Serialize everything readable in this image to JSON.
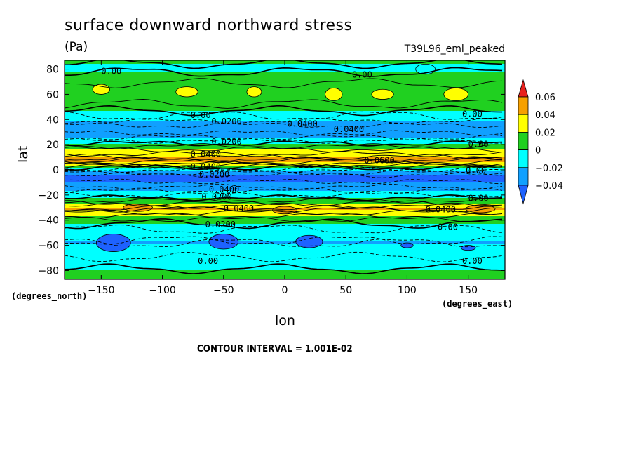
{
  "title": "surface downward northward stress",
  "units": "(Pa)",
  "dataset": "T39L96_eml_peaked",
  "footer": "CONTOUR INTERVAL = 1.001E-02",
  "chart_data": {
    "type": "heatmap",
    "title": "surface downward northward stress",
    "units": "(Pa)",
    "xlabel": "lon",
    "ylabel": "lat",
    "x_unit_label": "(degrees_east)",
    "y_unit_label": "(degrees_north)",
    "xlim": [
      -180,
      180
    ],
    "ylim": [
      -87,
      87
    ],
    "x_ticks": [
      -150,
      -100,
      -50,
      0,
      50,
      100,
      150
    ],
    "y_ticks": [
      -80,
      -60,
      -40,
      -20,
      0,
      20,
      40,
      60,
      80
    ],
    "x_tick_labels": [
      "−150",
      "−100",
      "−50",
      "0",
      "50",
      "100",
      "150"
    ],
    "y_tick_labels": [
      "−80",
      "−60",
      "−40",
      "−20",
      "0",
      "20",
      "40",
      "60",
      "80"
    ],
    "colorbar": {
      "levels": [
        0.06,
        0.04,
        0.02,
        0,
        -0.02,
        -0.04
      ],
      "labels": [
        "0.06",
        "0.04",
        "0.02",
        "0",
        "−0.02",
        "−0.04"
      ],
      "colors": [
        "#e8211c",
        "#f6a000",
        "#ffff00",
        "#20d020",
        "#00ffff",
        "#10a0ff",
        "#1e62ff"
      ]
    },
    "contour_interval": 0.01001,
    "lat_profile": [
      {
        "lat": 87,
        "value": 0.005
      },
      {
        "lat": 82,
        "value": -0.005
      },
      {
        "lat": 75,
        "value": 0.003
      },
      {
        "lat": 62,
        "value": 0.018
      },
      {
        "lat": 50,
        "value": 0.008
      },
      {
        "lat": 44,
        "value": -0.008
      },
      {
        "lat": 38,
        "value": -0.022
      },
      {
        "lat": 33,
        "value": -0.038
      },
      {
        "lat": 27,
        "value": -0.025
      },
      {
        "lat": 22,
        "value": -0.005
      },
      {
        "lat": 17,
        "value": 0.018
      },
      {
        "lat": 12,
        "value": 0.032
      },
      {
        "lat": 8,
        "value": 0.052
      },
      {
        "lat": 4,
        "value": 0.022
      },
      {
        "lat": 0,
        "value": -0.018
      },
      {
        "lat": -5,
        "value": -0.045
      },
      {
        "lat": -11,
        "value": -0.038
      },
      {
        "lat": -16,
        "value": -0.022
      },
      {
        "lat": -21,
        "value": -0.006
      },
      {
        "lat": -26,
        "value": 0.018
      },
      {
        "lat": -31,
        "value": 0.042
      },
      {
        "lat": -36,
        "value": 0.022
      },
      {
        "lat": -41,
        "value": 0.004
      },
      {
        "lat": -48,
        "value": -0.012
      },
      {
        "lat": -57,
        "value": -0.021
      },
      {
        "lat": -67,
        "value": -0.012
      },
      {
        "lat": -76,
        "value": -0.004
      },
      {
        "lat": -82,
        "value": 0.005
      },
      {
        "lat": -87,
        "value": 0.008
      }
    ],
    "contour_labels": [
      {
        "text": "0.00",
        "lon": -150,
        "lat": 79
      },
      {
        "text": "0.00",
        "lon": 55,
        "lat": 76
      },
      {
        "text": "0.00",
        "lon": -77,
        "lat": 44
      },
      {
        "text": "0.0200",
        "lon": -60,
        "lat": 39
      },
      {
        "text": "0.0400",
        "lon": 2,
        "lat": 37
      },
      {
        "text": "0.0400",
        "lon": 40,
        "lat": 33
      },
      {
        "text": "0.00",
        "lon": 145,
        "lat": 45
      },
      {
        "text": "0.0200",
        "lon": -60,
        "lat": 23
      },
      {
        "text": "0.00",
        "lon": 150,
        "lat": 21
      },
      {
        "text": "0.0400",
        "lon": -77,
        "lat": 13
      },
      {
        "text": "0.0600",
        "lon": 65,
        "lat": 8
      },
      {
        "text": "0.0400",
        "lon": -77,
        "lat": 3
      },
      {
        "text": "0.0200",
        "lon": -70,
        "lat": -3
      },
      {
        "text": "0.00",
        "lon": 148,
        "lat": 0
      },
      {
        "text": "0.0400",
        "lon": -62,
        "lat": -15
      },
      {
        "text": "0.0200",
        "lon": -68,
        "lat": -21
      },
      {
        "text": "0.00",
        "lon": 150,
        "lat": -22
      },
      {
        "text": "0.0400",
        "lon": -50,
        "lat": -30
      },
      {
        "text": "0.0400",
        "lon": 115,
        "lat": -31
      },
      {
        "text": "0.0200",
        "lon": -65,
        "lat": -43
      },
      {
        "text": "0.00",
        "lon": 125,
        "lat": -45
      },
      {
        "text": "0.00",
        "lon": -71,
        "lat": -72
      },
      {
        "text": "0.00",
        "lon": 145,
        "lat": -72
      }
    ]
  }
}
